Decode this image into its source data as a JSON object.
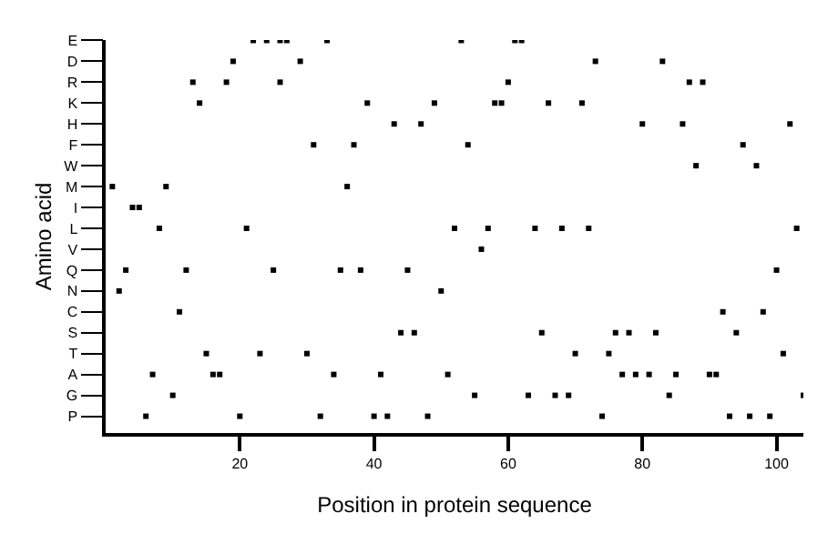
{
  "chart_data": {
    "type": "scatter",
    "orientation": "horizontal",
    "xlabel": "Position in protein sequence",
    "ylabel": "Amino acid",
    "categories": [
      "E",
      "D",
      "R",
      "K",
      "H",
      "F",
      "W",
      "M",
      "I",
      "L",
      "V",
      "Q",
      "N",
      "C",
      "S",
      "T",
      "A",
      "G",
      "P"
    ],
    "xlim": [
      0,
      104
    ],
    "xticks": [
      20,
      40,
      60,
      80,
      100
    ],
    "marker": "square",
    "series": [
      {
        "color": "#000000",
        "values": [
          22,
          19,
          13,
          14,
          43,
          31,
          88,
          1,
          4,
          8,
          56,
          3,
          2,
          11,
          44,
          15,
          7,
          10,
          6
        ]
      },
      {
        "color": "#000000",
        "values": [
          24,
          29,
          18,
          39,
          47,
          37,
          97,
          9,
          5,
          21,
          null,
          12,
          50,
          92,
          46,
          23,
          16,
          55,
          20
        ]
      },
      {
        "color": "#000000",
        "values": [
          26,
          73,
          26,
          49,
          80,
          54,
          null,
          36,
          null,
          52,
          null,
          25,
          null,
          98,
          65,
          30,
          17,
          63,
          32
        ]
      },
      {
        "color": "#000000",
        "values": [
          27,
          83,
          60,
          58,
          86,
          95,
          null,
          null,
          null,
          57,
          null,
          35,
          null,
          null,
          76,
          70,
          34,
          67,
          40
        ]
      },
      {
        "color": "#000000",
        "values": [
          33,
          null,
          87,
          59,
          102,
          null,
          null,
          null,
          null,
          64,
          null,
          38,
          null,
          null,
          78,
          75,
          41,
          69,
          42
        ]
      },
      {
        "color": "#000000",
        "values": [
          53,
          null,
          89,
          66,
          null,
          null,
          null,
          null,
          null,
          68,
          null,
          45,
          null,
          null,
          82,
          101,
          51,
          84,
          48
        ]
      },
      {
        "color": "#000000",
        "values": [
          61,
          null,
          null,
          71,
          null,
          null,
          null,
          null,
          null,
          72,
          null,
          100,
          null,
          null,
          94,
          null,
          77,
          104,
          74
        ]
      },
      {
        "color": "#000000",
        "values": [
          62,
          null,
          null,
          null,
          null,
          null,
          null,
          null,
          null,
          103,
          null,
          null,
          null,
          null,
          null,
          null,
          79,
          null,
          93
        ]
      },
      {
        "color": "#000000",
        "values": [
          null,
          null,
          null,
          null,
          null,
          null,
          null,
          null,
          null,
          null,
          null,
          null,
          null,
          null,
          null,
          null,
          81,
          null,
          96
        ]
      },
      {
        "color": "#000000",
        "values": [
          null,
          null,
          null,
          null,
          null,
          null,
          null,
          null,
          null,
          null,
          null,
          null,
          null,
          null,
          null,
          null,
          85,
          null,
          99
        ]
      },
      {
        "color": "#000000",
        "values": [
          null,
          null,
          null,
          null,
          null,
          null,
          null,
          null,
          null,
          null,
          null,
          null,
          null,
          null,
          null,
          null,
          90,
          null,
          null
        ]
      },
      {
        "color": "#000000",
        "values": [
          null,
          null,
          null,
          null,
          null,
          null,
          null,
          null,
          null,
          null,
          null,
          null,
          null,
          null,
          null,
          null,
          91,
          null,
          null
        ]
      }
    ]
  }
}
